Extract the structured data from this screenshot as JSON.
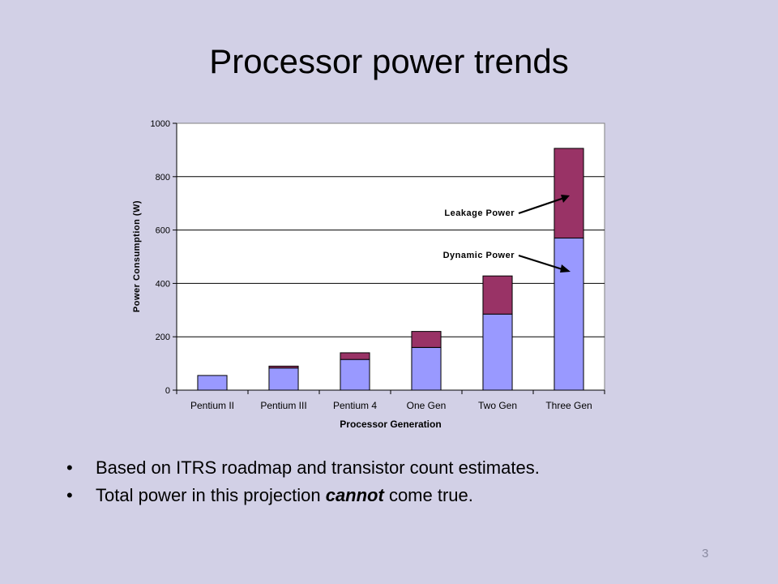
{
  "slide": {
    "title": "Processor power trends",
    "bullets": [
      {
        "before": "Based on ITRS roadmap and transistor count estimates.",
        "emphasis": "",
        "after": ""
      },
      {
        "before": "Total power in this projection ",
        "emphasis": "cannot",
        "after": " come true."
      }
    ],
    "page_number": "3"
  },
  "chart_data": {
    "type": "bar",
    "stacked": true,
    "title": "",
    "xlabel": "Processor Generation",
    "ylabel": "Power Consumption (W)",
    "ylim": [
      0,
      1000
    ],
    "yticks": [
      "0",
      "200",
      "400",
      "600",
      "800",
      "1000"
    ],
    "grid": true,
    "categories": [
      "Pentium II",
      "Pentium III",
      "Pentium 4",
      "One Gen",
      "Two Gen",
      "Three Gen"
    ],
    "series": [
      {
        "name": "Dynamic Power",
        "color": "#9999ff",
        "values": [
          55,
          83,
          115,
          160,
          285,
          570
        ]
      },
      {
        "name": "Leakage Power",
        "color": "#993366",
        "values": [
          0,
          7,
          25,
          60,
          143,
          336
        ]
      }
    ],
    "annotations": [
      "Leakage Power",
      "Dynamic Power"
    ]
  }
}
